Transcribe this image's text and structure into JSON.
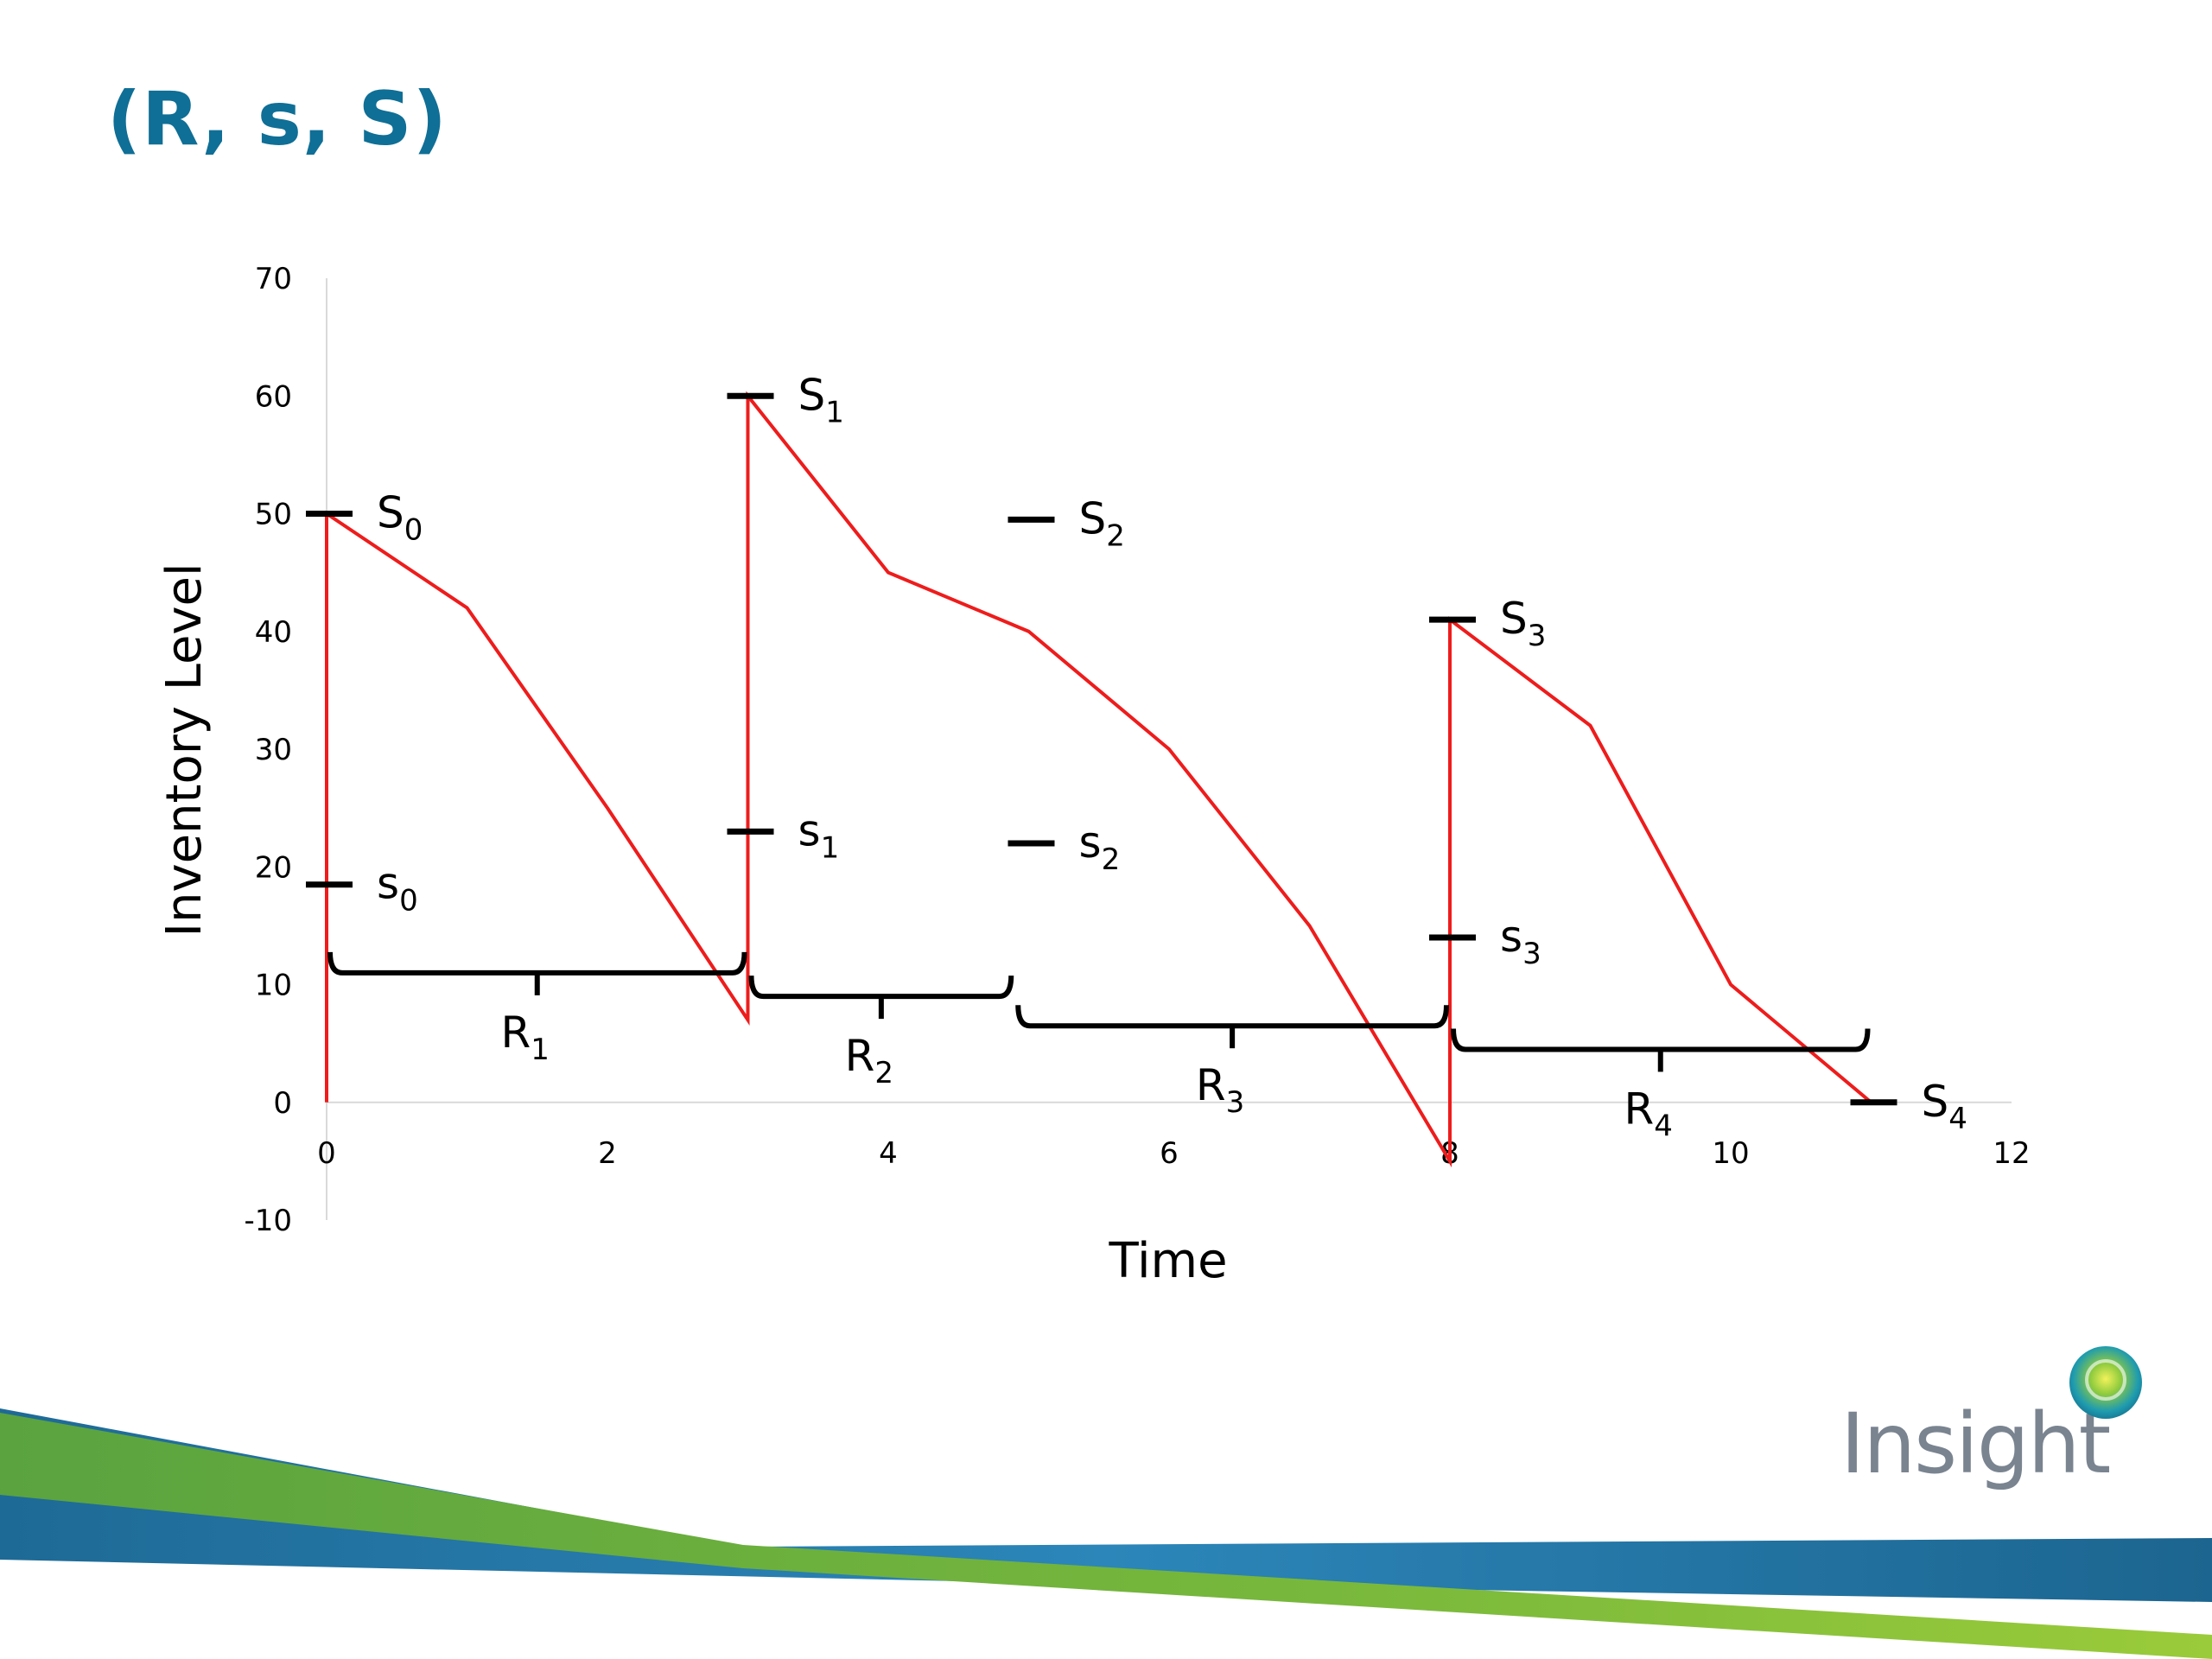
{
  "slide": {
    "title": "(R, s, S)",
    "logo_text": "Insight",
    "colors": {
      "title": "#0F6F96",
      "series": "#EE1C1C",
      "markers": "#000000",
      "axis": "#D9D9D9",
      "band_green": "#6DB33F",
      "band_blue": "#1F6E9C"
    }
  },
  "chart_data": {
    "type": "line",
    "xlabel": "Time",
    "ylabel": "Inventory Level",
    "xlim": [
      0,
      12
    ],
    "ylim": [
      -10,
      70
    ],
    "xticks": [
      0,
      2,
      4,
      6,
      8,
      10,
      12
    ],
    "yticks": [
      70,
      60,
      50,
      40,
      30,
      20,
      10,
      0,
      -10
    ],
    "grid": false,
    "series": [
      {
        "x": [
          0,
          0,
          1,
          2,
          3,
          3,
          4,
          5,
          6,
          7,
          8,
          8,
          9,
          10,
          11
        ],
        "y": [
          0,
          50,
          42,
          25,
          7,
          60,
          45,
          40,
          30,
          15,
          -5,
          41,
          32,
          10,
          0
        ]
      }
    ],
    "level_markers": [
      {
        "x": 0,
        "y": 50,
        "label": "S",
        "sub": "0"
      },
      {
        "x": 0,
        "y": 18.5,
        "label": "s",
        "sub": "0"
      },
      {
        "x": 3,
        "y": 60,
        "label": "S",
        "sub": "1"
      },
      {
        "x": 3,
        "y": 23,
        "label": "s",
        "sub": "1"
      },
      {
        "x": 5,
        "y": 49.5,
        "label": "S",
        "sub": "2"
      },
      {
        "x": 5,
        "y": 22,
        "label": "s",
        "sub": "2"
      },
      {
        "x": 8,
        "y": 41,
        "label": "S",
        "sub": "3"
      },
      {
        "x": 8,
        "y": 14,
        "label": "s",
        "sub": "3"
      },
      {
        "x": 11,
        "y": 0,
        "label": "S",
        "sub": "4"
      }
    ],
    "review_periods": [
      {
        "start": 0,
        "end": 3,
        "y": 11,
        "label": "R",
        "sub": "1"
      },
      {
        "start": 3,
        "end": 4.9,
        "y": 9,
        "label": "R",
        "sub": "2"
      },
      {
        "start": 4.9,
        "end": 8,
        "y": 6.5,
        "label": "R",
        "sub": "3"
      },
      {
        "start": 8,
        "end": 11,
        "y": 4.5,
        "label": "R",
        "sub": "4"
      }
    ]
  }
}
